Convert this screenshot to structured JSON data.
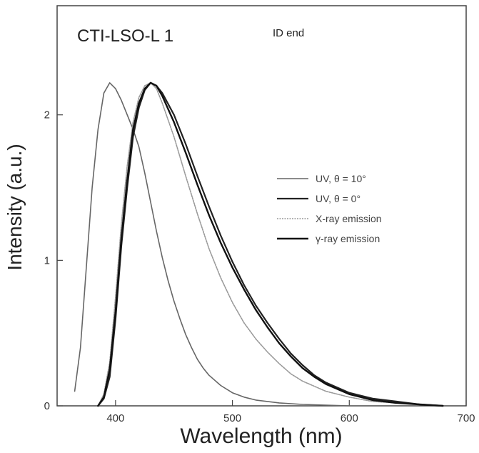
{
  "chart_data": {
    "type": "line",
    "title": "CTI-LSO-L 1",
    "annotation": "ID end",
    "xlabel": "Wavelength (nm)",
    "ylabel": "Intensity (a.u.)",
    "xlim": [
      350,
      700
    ],
    "ylim": [
      0,
      2.75
    ],
    "x_ticks": [
      400,
      500,
      600,
      700
    ],
    "y_ticks": [
      0,
      1,
      2
    ],
    "legend_placement": "center-right",
    "grid": false,
    "series": [
      {
        "name": "UV, θ = 10°",
        "color": "#666666",
        "points": [
          [
            365,
            0.1
          ],
          [
            370,
            0.4
          ],
          [
            375,
            0.95
          ],
          [
            380,
            1.5
          ],
          [
            385,
            1.9
          ],
          [
            390,
            2.15
          ],
          [
            395,
            2.22
          ],
          [
            400,
            2.18
          ],
          [
            405,
            2.1
          ],
          [
            410,
            2.0
          ],
          [
            415,
            1.9
          ],
          [
            420,
            1.78
          ],
          [
            425,
            1.6
          ],
          [
            430,
            1.4
          ],
          [
            435,
            1.2
          ],
          [
            440,
            1.02
          ],
          [
            445,
            0.86
          ],
          [
            450,
            0.72
          ],
          [
            455,
            0.6
          ],
          [
            460,
            0.49
          ],
          [
            465,
            0.4
          ],
          [
            470,
            0.32
          ],
          [
            475,
            0.26
          ],
          [
            480,
            0.21
          ],
          [
            490,
            0.14
          ],
          [
            500,
            0.09
          ],
          [
            510,
            0.06
          ],
          [
            520,
            0.04
          ],
          [
            540,
            0.02
          ],
          [
            560,
            0.01
          ],
          [
            600,
            0.0
          ],
          [
            650,
            0.0
          ]
        ]
      },
      {
        "name": "UV, θ = 0°",
        "color": "#222222",
        "points": [
          [
            385,
            0.0
          ],
          [
            390,
            0.05
          ],
          [
            395,
            0.2
          ],
          [
            400,
            0.6
          ],
          [
            405,
            1.1
          ],
          [
            410,
            1.5
          ],
          [
            415,
            1.85
          ],
          [
            420,
            2.05
          ],
          [
            425,
            2.17
          ],
          [
            430,
            2.22
          ],
          [
            435,
            2.2
          ],
          [
            440,
            2.15
          ],
          [
            450,
            2.0
          ],
          [
            460,
            1.8
          ],
          [
            470,
            1.58
          ],
          [
            480,
            1.37
          ],
          [
            490,
            1.17
          ],
          [
            500,
            0.99
          ],
          [
            510,
            0.83
          ],
          [
            520,
            0.69
          ],
          [
            530,
            0.57
          ],
          [
            540,
            0.46
          ],
          [
            550,
            0.36
          ],
          [
            560,
            0.28
          ],
          [
            570,
            0.21
          ],
          [
            580,
            0.16
          ],
          [
            600,
            0.09
          ],
          [
            620,
            0.05
          ],
          [
            640,
            0.03
          ],
          [
            660,
            0.01
          ],
          [
            680,
            0.0
          ]
        ]
      },
      {
        "name": "X-ray emission",
        "color": "#999999",
        "points": [
          [
            385,
            0.0
          ],
          [
            390,
            0.08
          ],
          [
            395,
            0.3
          ],
          [
            400,
            0.75
          ],
          [
            405,
            1.25
          ],
          [
            410,
            1.65
          ],
          [
            415,
            1.95
          ],
          [
            420,
            2.12
          ],
          [
            425,
            2.2
          ],
          [
            430,
            2.22
          ],
          [
            435,
            2.18
          ],
          [
            440,
            2.08
          ],
          [
            450,
            1.85
          ],
          [
            460,
            1.58
          ],
          [
            470,
            1.32
          ],
          [
            480,
            1.08
          ],
          [
            490,
            0.88
          ],
          [
            500,
            0.71
          ],
          [
            510,
            0.57
          ],
          [
            520,
            0.46
          ],
          [
            530,
            0.37
          ],
          [
            540,
            0.29
          ],
          [
            550,
            0.22
          ],
          [
            560,
            0.17
          ],
          [
            580,
            0.1
          ],
          [
            600,
            0.06
          ],
          [
            620,
            0.03
          ],
          [
            640,
            0.02
          ],
          [
            660,
            0.01
          ],
          [
            680,
            0.0
          ]
        ]
      },
      {
        "name": "γ-ray emission",
        "color": "#111111",
        "points": [
          [
            385,
            0.0
          ],
          [
            390,
            0.06
          ],
          [
            395,
            0.25
          ],
          [
            400,
            0.65
          ],
          [
            405,
            1.15
          ],
          [
            410,
            1.55
          ],
          [
            415,
            1.9
          ],
          [
            420,
            2.08
          ],
          [
            425,
            2.18
          ],
          [
            430,
            2.22
          ],
          [
            435,
            2.2
          ],
          [
            440,
            2.13
          ],
          [
            450,
            1.95
          ],
          [
            460,
            1.74
          ],
          [
            470,
            1.52
          ],
          [
            480,
            1.31
          ],
          [
            490,
            1.12
          ],
          [
            500,
            0.95
          ],
          [
            510,
            0.8
          ],
          [
            520,
            0.66
          ],
          [
            530,
            0.54
          ],
          [
            540,
            0.43
          ],
          [
            550,
            0.34
          ],
          [
            560,
            0.26
          ],
          [
            570,
            0.2
          ],
          [
            580,
            0.15
          ],
          [
            600,
            0.08
          ],
          [
            620,
            0.04
          ],
          [
            640,
            0.02
          ],
          [
            660,
            0.01
          ],
          [
            680,
            0.0
          ]
        ]
      }
    ]
  }
}
